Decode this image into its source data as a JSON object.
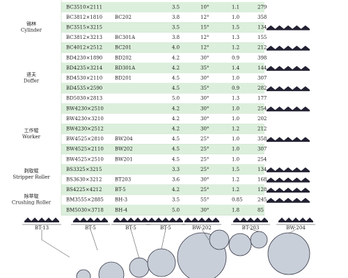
{
  "groups": [
    {
      "zh": "锡林",
      "en": "Cylinder",
      "rows": [
        {
          "model": "BC3510×2111",
          "gauge": "3.5",
          "angle": "10°",
          "depth": "1.1",
          "count": "279"
        },
        {
          "model": "BC3812×1810",
          "alt": "BC202",
          "gauge": "3.8",
          "angle": "12°",
          "depth": "1.0",
          "count": "358"
        },
        {
          "model": "BC3515×3215",
          "gauge": "3.5",
          "angle": "15°",
          "depth": "1.5",
          "count": "134"
        },
        {
          "model": "BC3812×3213",
          "alt": "BC301A",
          "gauge": "3.8",
          "angle": "12°",
          "depth": "1.3",
          "count": "155"
        },
        {
          "model": "BC4012×2512",
          "alt": "BC201",
          "gauge": "4.0",
          "angle": "12°",
          "depth": "1.2",
          "count": "212"
        }
      ]
    },
    {
      "zh": "道夫",
      "en": "Doffer",
      "rows": [
        {
          "model": "BD4230×1890",
          "alt": "BD202",
          "gauge": "4.2",
          "angle": "30°",
          "depth": "0.9",
          "count": "398"
        },
        {
          "model": "BD4235×3214",
          "alt": "BD301A",
          "gauge": "4.2",
          "angle": "35°",
          "depth": "1.4",
          "count": "144"
        },
        {
          "model": "BD4530×2110",
          "alt": "BD201",
          "gauge": "4.5",
          "angle": "30°",
          "depth": "1.0",
          "count": "307"
        },
        {
          "model": "BD4535×2590",
          "gauge": "4.5",
          "angle": "35°",
          "depth": "0.9",
          "count": "282"
        },
        {
          "model": "BD5030×2813",
          "gauge": "5.0",
          "angle": "30°",
          "depth": "1.3",
          "count": "177"
        }
      ]
    },
    {
      "zh": "工作辊",
      "en": "Worker",
      "rows": [
        {
          "model": "BW4230×2510",
          "gauge": "4.2",
          "angle": "30°",
          "depth": "1.0",
          "count": "254"
        },
        {
          "model": "BW4230×3210",
          "gauge": "4.2",
          "angle": "30°",
          "depth": "1.0",
          "count": "202"
        },
        {
          "model": "BW4230×2512",
          "gauge": "4.2",
          "angle": "30°",
          "depth": "1.2",
          "count": "212"
        },
        {
          "model": "BW4525×2810",
          "alt": "BW204",
          "gauge": "4.5",
          "angle": "25°",
          "depth": "1.0",
          "count": "358"
        },
        {
          "model": "BW4525×2110",
          "alt": "BW202",
          "gauge": "4.5",
          "angle": "25°",
          "depth": "1.0",
          "count": "307"
        },
        {
          "model": "BW4525×2510",
          "alt": "BW201",
          "gauge": "4.5",
          "angle": "25°",
          "depth": "1.0",
          "count": "254"
        }
      ]
    },
    {
      "zh": "剥取辊",
      "en": "Stripper Roller",
      "rows": [
        {
          "model": "BS3325×3215",
          "gauge": "3.3",
          "angle": "25°",
          "depth": "1.5",
          "count": "134"
        },
        {
          "model": "BS3630×3212",
          "alt": "BT203",
          "gauge": "3.6",
          "angle": "30°",
          "depth": "1.2",
          "count": "168"
        }
      ]
    },
    {
      "zh": "除草辊",
      "en": "Crushing Roller",
      "rows": [
        {
          "model": "BS4225×4212",
          "alt": "BT-5",
          "gauge": "4.2",
          "angle": "25°",
          "depth": "1.2",
          "count": "128"
        },
        {
          "model": "BM3555×2885",
          "alt": "BH-3",
          "gauge": "3.5",
          "angle": "55°",
          "depth": "0.85",
          "count": "245"
        },
        {
          "model": "BM5030×3718",
          "alt": "BH-4",
          "gauge": "5.0",
          "angle": "30°",
          "depth": "1.8",
          "count": "85"
        }
      ]
    }
  ],
  "profiles": [
    "BT-13",
    "BT-5",
    "BT-5",
    "BT-5",
    "BW-202",
    "BT-203",
    "BW-204"
  ]
}
